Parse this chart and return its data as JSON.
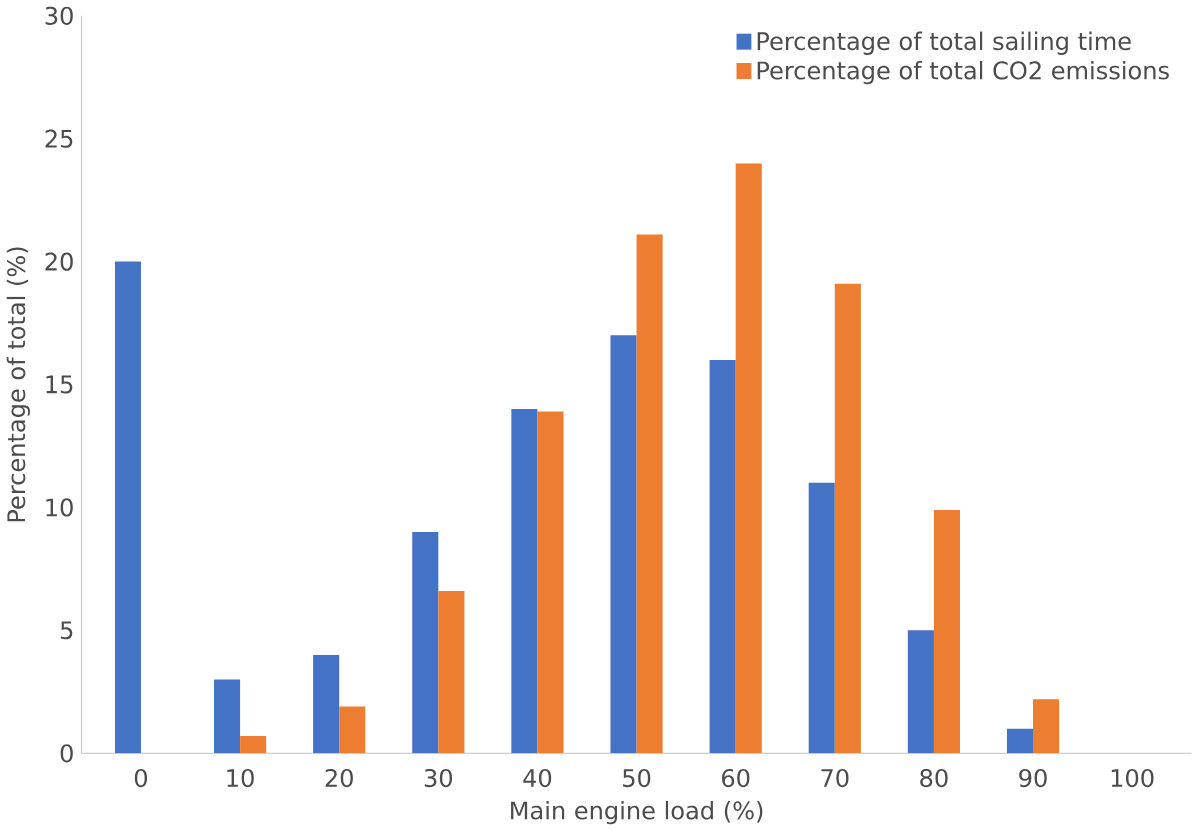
{
  "chart_data": {
    "type": "bar",
    "xlabel": "Main engine load (%)",
    "ylabel": "Percentage of total (%)",
    "categories": [
      "0",
      "10",
      "20",
      "30",
      "40",
      "50",
      "60",
      "70",
      "80",
      "90",
      "100"
    ],
    "series": [
      {
        "name": "Percentage of total sailing time",
        "color": "#4472c4",
        "values": [
          20,
          3,
          4,
          9,
          14,
          17,
          16,
          11,
          5,
          1,
          0
        ]
      },
      {
        "name": "Percentage of total CO2 emissions",
        "color": "#ed7d31",
        "values": [
          0,
          0.7,
          1.9,
          6.6,
          13.9,
          21.1,
          24,
          19.1,
          9.9,
          2.2,
          0
        ]
      }
    ],
    "ylim": [
      0,
      30
    ],
    "yticks": [
      0,
      5,
      10,
      15,
      20,
      25,
      30
    ],
    "grid": false,
    "legend": "top right"
  }
}
